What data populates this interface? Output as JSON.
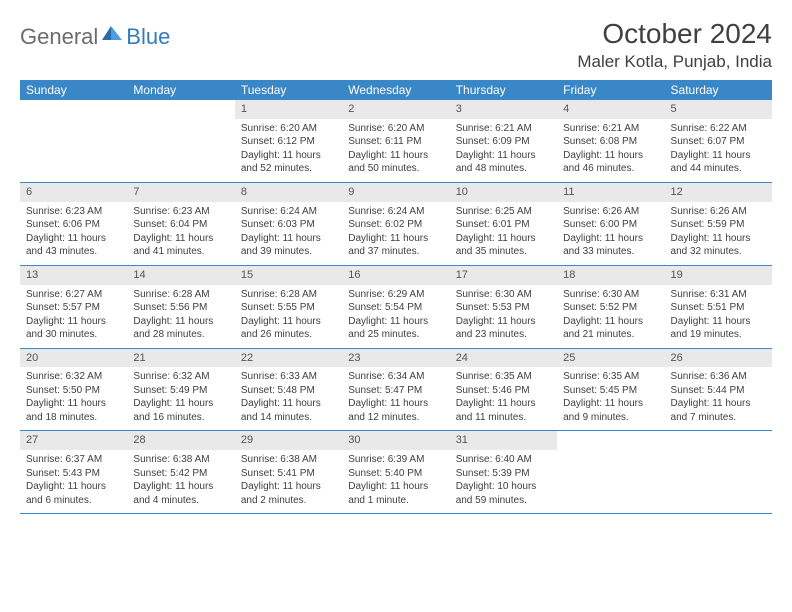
{
  "logo": {
    "text1": "General",
    "text2": "Blue",
    "color1": "#6c6c6c",
    "color2": "#357bbd"
  },
  "title": "October 2024",
  "location": "Maler Kotla, Punjab, India",
  "colors": {
    "header_bg": "#3a87c7",
    "header_text": "#ffffff",
    "daynum_bg": "#e9e9e9",
    "daynum_text": "#555555",
    "body_text": "#404040",
    "row_border": "#3a87c7",
    "page_bg": "#ffffff"
  },
  "fonts": {
    "month_title_size": 28,
    "location_size": 17,
    "weekday_size": 12,
    "daynum_size": 11,
    "body_size": 10
  },
  "weekdays": [
    "Sunday",
    "Monday",
    "Tuesday",
    "Wednesday",
    "Thursday",
    "Friday",
    "Saturday"
  ],
  "weeks": [
    [
      null,
      null,
      {
        "n": "1",
        "sr": "6:20 AM",
        "ss": "6:12 PM",
        "dl": "11 hours and 52 minutes."
      },
      {
        "n": "2",
        "sr": "6:20 AM",
        "ss": "6:11 PM",
        "dl": "11 hours and 50 minutes."
      },
      {
        "n": "3",
        "sr": "6:21 AM",
        "ss": "6:09 PM",
        "dl": "11 hours and 48 minutes."
      },
      {
        "n": "4",
        "sr": "6:21 AM",
        "ss": "6:08 PM",
        "dl": "11 hours and 46 minutes."
      },
      {
        "n": "5",
        "sr": "6:22 AM",
        "ss": "6:07 PM",
        "dl": "11 hours and 44 minutes."
      }
    ],
    [
      {
        "n": "6",
        "sr": "6:23 AM",
        "ss": "6:06 PM",
        "dl": "11 hours and 43 minutes."
      },
      {
        "n": "7",
        "sr": "6:23 AM",
        "ss": "6:04 PM",
        "dl": "11 hours and 41 minutes."
      },
      {
        "n": "8",
        "sr": "6:24 AM",
        "ss": "6:03 PM",
        "dl": "11 hours and 39 minutes."
      },
      {
        "n": "9",
        "sr": "6:24 AM",
        "ss": "6:02 PM",
        "dl": "11 hours and 37 minutes."
      },
      {
        "n": "10",
        "sr": "6:25 AM",
        "ss": "6:01 PM",
        "dl": "11 hours and 35 minutes."
      },
      {
        "n": "11",
        "sr": "6:26 AM",
        "ss": "6:00 PM",
        "dl": "11 hours and 33 minutes."
      },
      {
        "n": "12",
        "sr": "6:26 AM",
        "ss": "5:59 PM",
        "dl": "11 hours and 32 minutes."
      }
    ],
    [
      {
        "n": "13",
        "sr": "6:27 AM",
        "ss": "5:57 PM",
        "dl": "11 hours and 30 minutes."
      },
      {
        "n": "14",
        "sr": "6:28 AM",
        "ss": "5:56 PM",
        "dl": "11 hours and 28 minutes."
      },
      {
        "n": "15",
        "sr": "6:28 AM",
        "ss": "5:55 PM",
        "dl": "11 hours and 26 minutes."
      },
      {
        "n": "16",
        "sr": "6:29 AM",
        "ss": "5:54 PM",
        "dl": "11 hours and 25 minutes."
      },
      {
        "n": "17",
        "sr": "6:30 AM",
        "ss": "5:53 PM",
        "dl": "11 hours and 23 minutes."
      },
      {
        "n": "18",
        "sr": "6:30 AM",
        "ss": "5:52 PM",
        "dl": "11 hours and 21 minutes."
      },
      {
        "n": "19",
        "sr": "6:31 AM",
        "ss": "5:51 PM",
        "dl": "11 hours and 19 minutes."
      }
    ],
    [
      {
        "n": "20",
        "sr": "6:32 AM",
        "ss": "5:50 PM",
        "dl": "11 hours and 18 minutes."
      },
      {
        "n": "21",
        "sr": "6:32 AM",
        "ss": "5:49 PM",
        "dl": "11 hours and 16 minutes."
      },
      {
        "n": "22",
        "sr": "6:33 AM",
        "ss": "5:48 PM",
        "dl": "11 hours and 14 minutes."
      },
      {
        "n": "23",
        "sr": "6:34 AM",
        "ss": "5:47 PM",
        "dl": "11 hours and 12 minutes."
      },
      {
        "n": "24",
        "sr": "6:35 AM",
        "ss": "5:46 PM",
        "dl": "11 hours and 11 minutes."
      },
      {
        "n": "25",
        "sr": "6:35 AM",
        "ss": "5:45 PM",
        "dl": "11 hours and 9 minutes."
      },
      {
        "n": "26",
        "sr": "6:36 AM",
        "ss": "5:44 PM",
        "dl": "11 hours and 7 minutes."
      }
    ],
    [
      {
        "n": "27",
        "sr": "6:37 AM",
        "ss": "5:43 PM",
        "dl": "11 hours and 6 minutes."
      },
      {
        "n": "28",
        "sr": "6:38 AM",
        "ss": "5:42 PM",
        "dl": "11 hours and 4 minutes."
      },
      {
        "n": "29",
        "sr": "6:38 AM",
        "ss": "5:41 PM",
        "dl": "11 hours and 2 minutes."
      },
      {
        "n": "30",
        "sr": "6:39 AM",
        "ss": "5:40 PM",
        "dl": "11 hours and 1 minute."
      },
      {
        "n": "31",
        "sr": "6:40 AM",
        "ss": "5:39 PM",
        "dl": "10 hours and 59 minutes."
      },
      null,
      null
    ]
  ],
  "labels": {
    "sunrise": "Sunrise:",
    "sunset": "Sunset:",
    "daylight": "Daylight:"
  }
}
